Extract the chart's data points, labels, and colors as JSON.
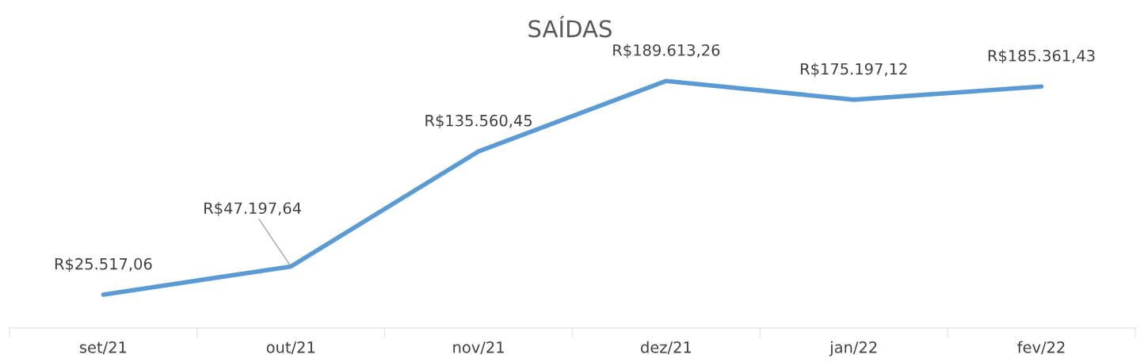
{
  "chart_data": {
    "type": "line",
    "title": "SAÍDAS",
    "categories": [
      "set/21",
      "out/21",
      "nov/21",
      "dez/21",
      "jan/22",
      "fev/22"
    ],
    "series": [
      {
        "color": "#5b9bd5",
        "values": [
          25517.06,
          47197.64,
          135560.45,
          189613.26,
          175197.12,
          185361.43
        ],
        "value_labels": [
          "R$25.517,06",
          "R$47.197,64",
          "R$135.560,45",
          "R$189.613,26",
          "R$175.197,12",
          "R$185.361,43"
        ]
      }
    ],
    "grid": false,
    "legend": false,
    "marker": "none",
    "line_style": "solid",
    "tick_labels": "x"
  }
}
